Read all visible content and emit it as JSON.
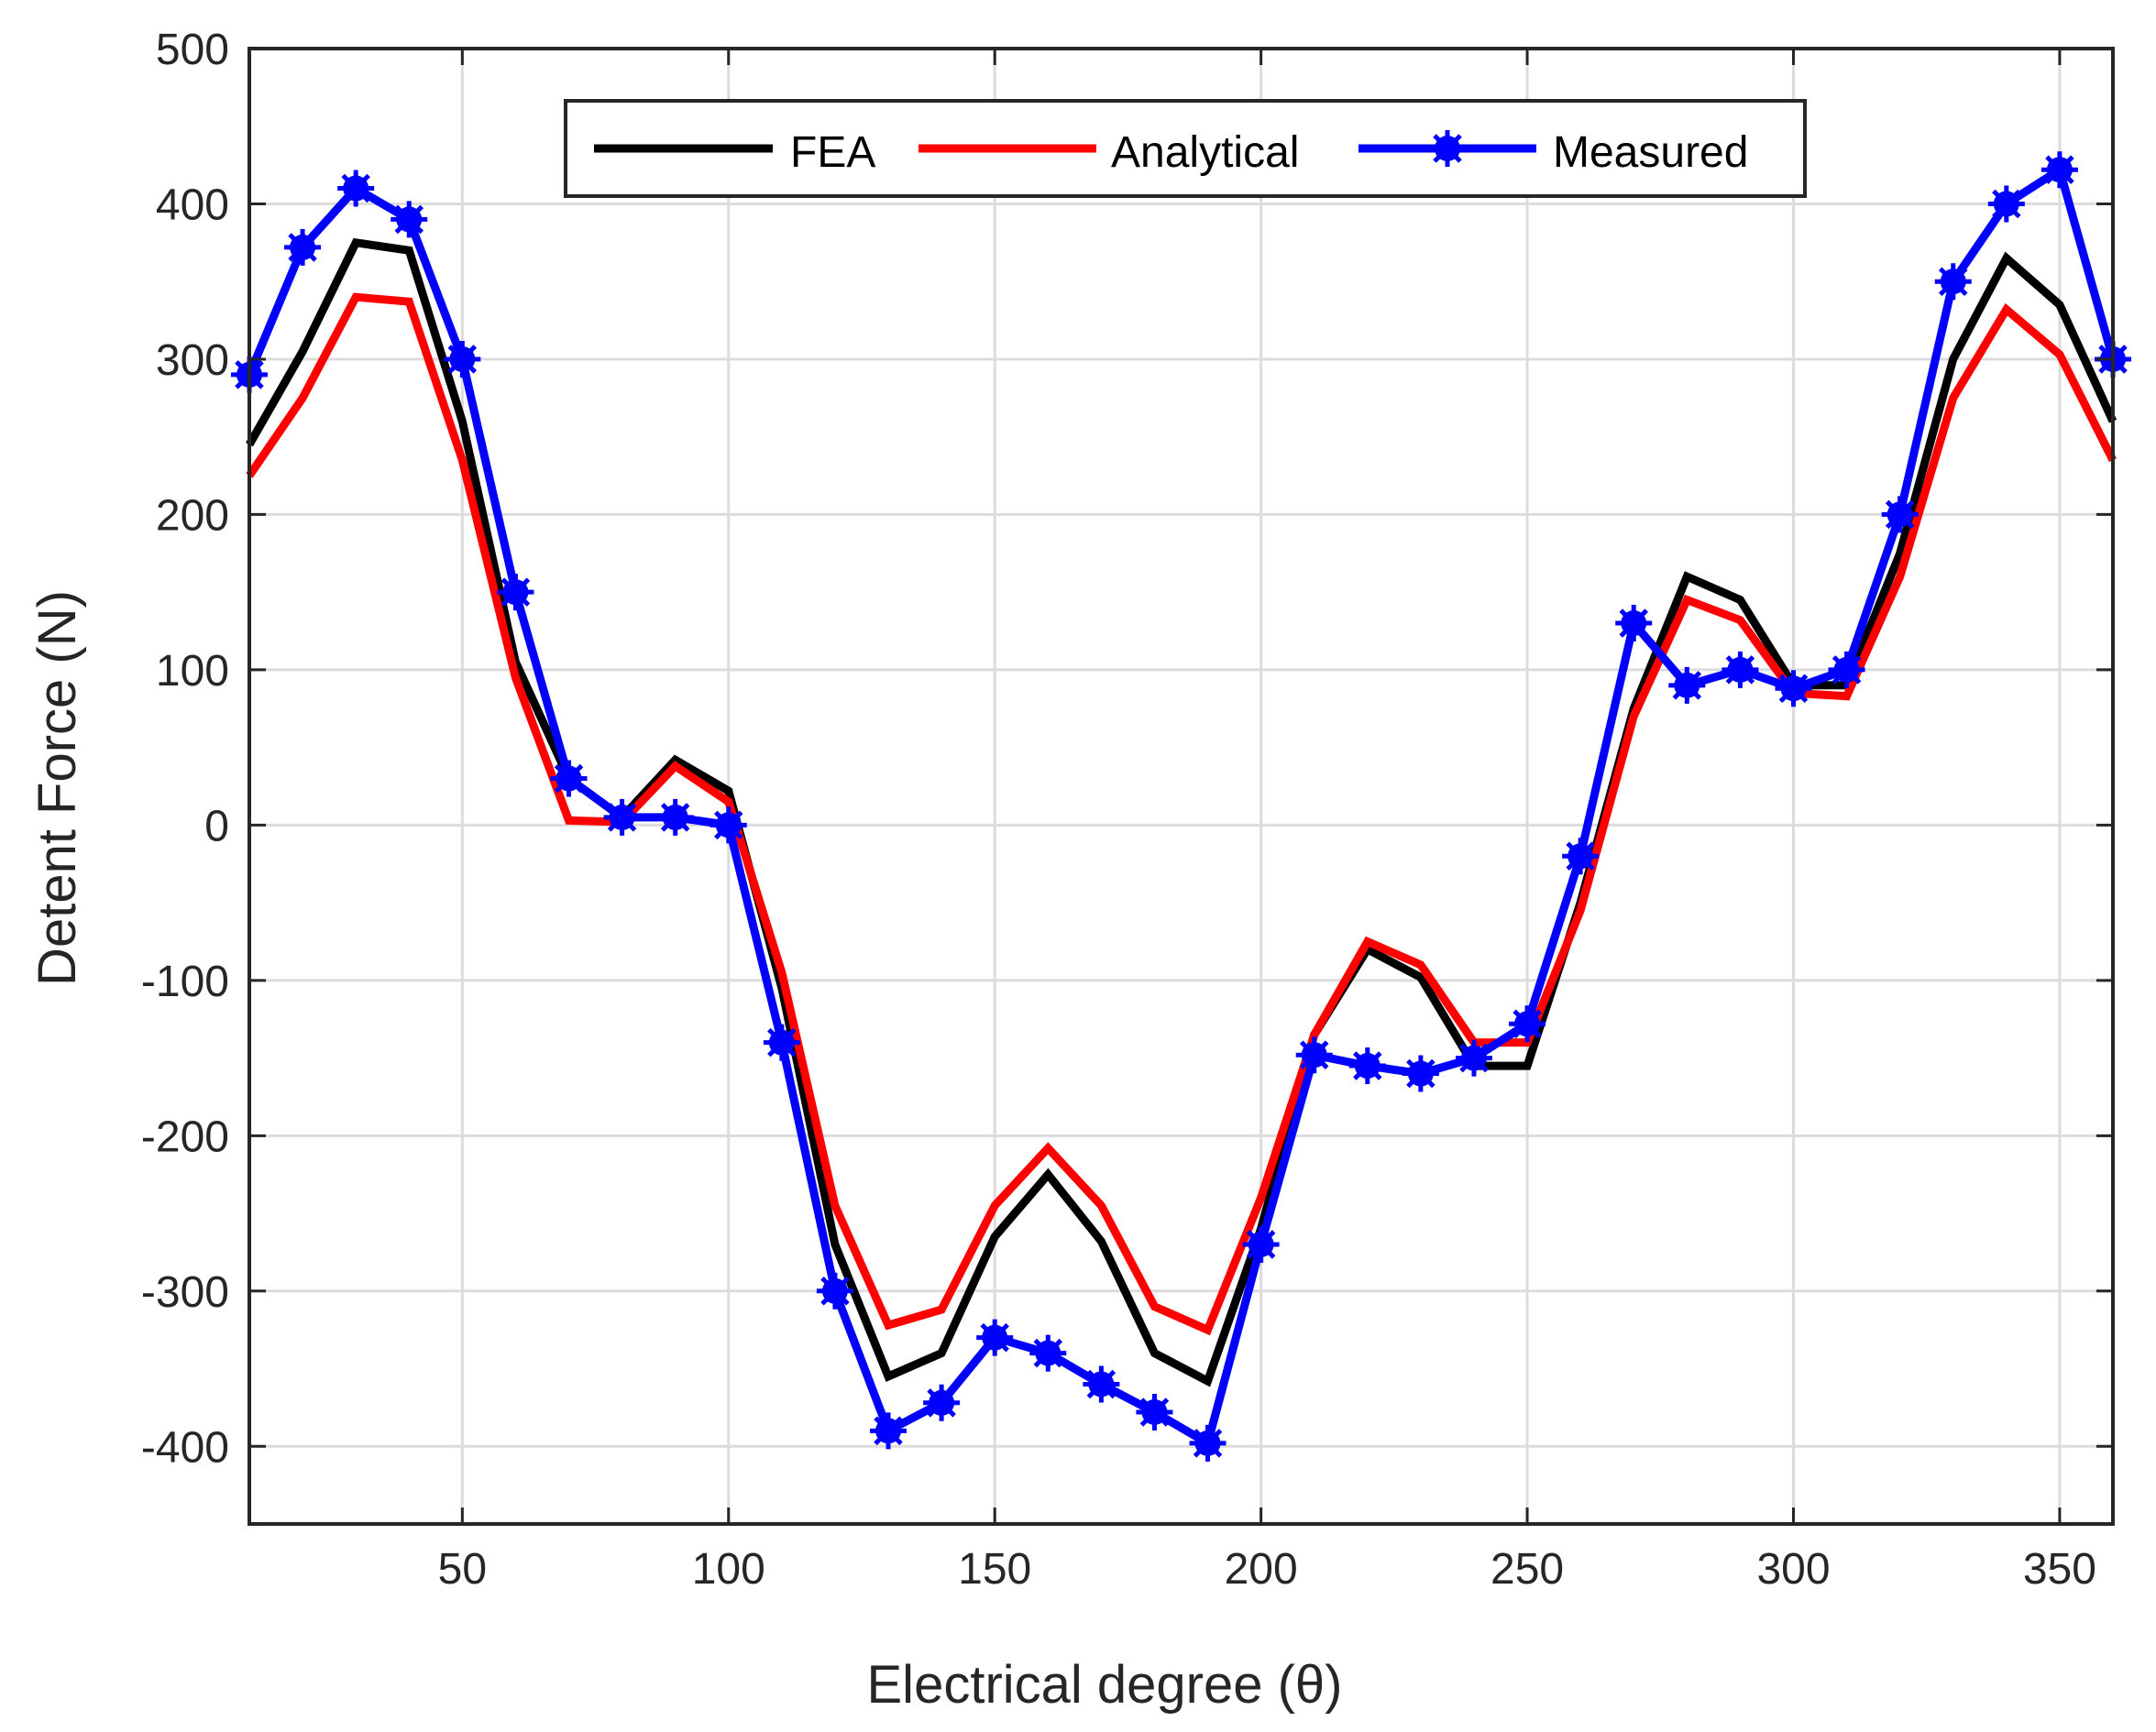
{
  "chart_data": {
    "type": "line",
    "xlabel": "Electrical degree (θ)",
    "ylabel": "Detent Force (N)",
    "xlim": [
      10,
      360
    ],
    "ylim": [
      -450,
      500
    ],
    "xticks": [
      50,
      100,
      150,
      200,
      250,
      300,
      350
    ],
    "yticks": [
      -400,
      -300,
      -200,
      -100,
      0,
      100,
      200,
      300,
      400,
      500
    ],
    "xtick_labels": [
      "50",
      "100",
      "150",
      "200",
      "250",
      "300",
      "350"
    ],
    "ytick_labels": [
      "-400",
      "-300",
      "-200",
      "-100",
      "0",
      "100",
      "200",
      "300",
      "400",
      "500"
    ],
    "grid": true,
    "legend_position": "top-center",
    "x": [
      10,
      20,
      30,
      40,
      50,
      60,
      70,
      80,
      90,
      100,
      110,
      120,
      130,
      140,
      150,
      160,
      170,
      180,
      190,
      200,
      210,
      220,
      230,
      240,
      250,
      260,
      270,
      280,
      290,
      300,
      310,
      320,
      330,
      340,
      350,
      360
    ],
    "series": [
      {
        "name": "FEA",
        "color": "#000000",
        "markers": false,
        "values": [
          245,
          305,
          375,
          370,
          260,
          105,
          30,
          5,
          42,
          22,
          -105,
          -270,
          -355,
          -340,
          -265,
          -225,
          -268,
          -340,
          -358,
          -260,
          -135,
          -80,
          -98,
          -155,
          -155,
          -50,
          75,
          160,
          145,
          90,
          90,
          175,
          300,
          365,
          335,
          260
        ]
      },
      {
        "name": "Analytical",
        "color": "#ff0000",
        "markers": false,
        "values": [
          225,
          275,
          340,
          337,
          235,
          95,
          3,
          2,
          38,
          15,
          -95,
          -245,
          -322,
          -312,
          -245,
          -208,
          -245,
          -310,
          -325,
          -240,
          -135,
          -75,
          -90,
          -140,
          -140,
          -55,
          70,
          145,
          132,
          85,
          83,
          160,
          275,
          332,
          303,
          235
        ]
      },
      {
        "name": "Measured",
        "color": "#0000ff",
        "markers": true,
        "values": [
          290,
          372,
          410,
          390,
          300,
          150,
          30,
          5,
          5,
          0,
          -140,
          -300,
          -390,
          -372,
          -330,
          -340,
          -360,
          -378,
          -398,
          -270,
          -148,
          -155,
          -160,
          -150,
          -128,
          -20,
          130,
          90,
          100,
          88,
          100,
          200,
          350,
          400,
          422,
          300
        ]
      }
    ]
  }
}
